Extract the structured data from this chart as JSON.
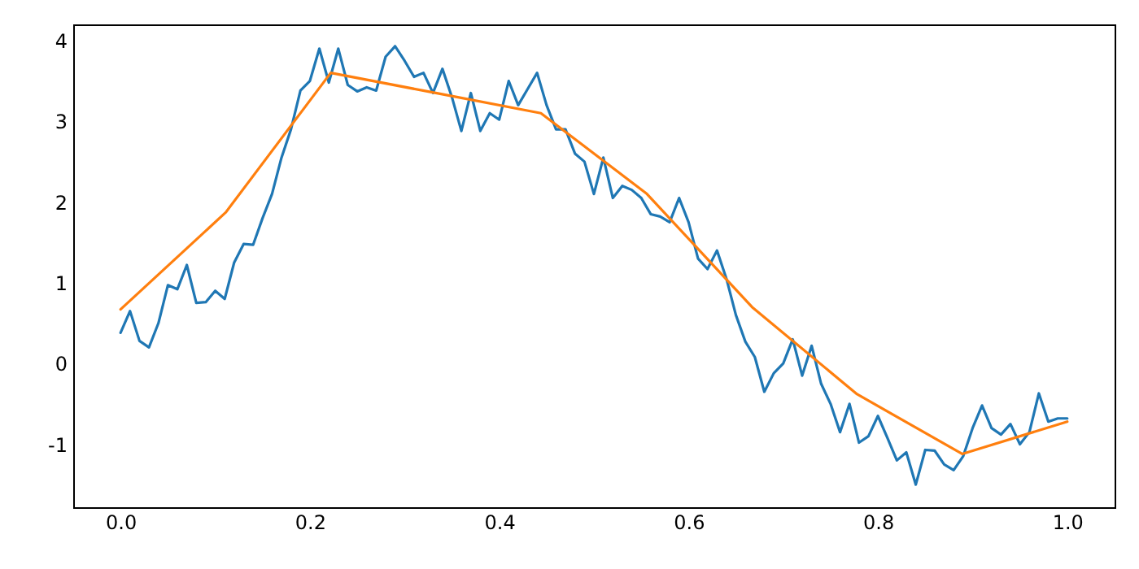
{
  "chart_data": {
    "type": "line",
    "xlim": [
      -0.05,
      1.05
    ],
    "xticks": [
      {
        "value": 0,
        "label": "0.0"
      },
      {
        "value": 0.2,
        "label": "0.2"
      },
      {
        "value": 0.4,
        "label": "0.4"
      },
      {
        "value": 0.6,
        "label": "0.6"
      },
      {
        "value": 0.8,
        "label": "0.8"
      },
      {
        "value": 1,
        "label": "1.0"
      }
    ],
    "ylim": [
      -1.78,
      4.2
    ],
    "yticks": [
      -1,
      0,
      1,
      2,
      3,
      4
    ],
    "grid": false,
    "series": [
      {
        "color": "#1f77b4",
        "x": [
          0,
          0.01,
          0.02,
          0.03,
          0.04,
          0.05,
          0.06,
          0.07,
          0.08,
          0.09,
          0.1,
          0.11,
          0.12,
          0.13,
          0.14,
          0.15,
          0.16,
          0.17,
          0.18,
          0.19,
          0.2,
          0.21,
          0.22,
          0.23,
          0.24,
          0.25,
          0.26,
          0.27,
          0.28,
          0.29,
          0.3,
          0.31,
          0.32,
          0.33,
          0.34,
          0.35,
          0.36,
          0.37,
          0.38,
          0.39,
          0.4,
          0.41,
          0.42,
          0.43,
          0.44,
          0.45,
          0.46,
          0.47,
          0.48,
          0.49,
          0.5,
          0.51,
          0.52,
          0.53,
          0.54,
          0.55,
          0.56,
          0.57,
          0.58,
          0.59,
          0.6,
          0.61,
          0.62,
          0.63,
          0.64,
          0.65,
          0.66,
          0.67,
          0.68,
          0.69,
          0.7,
          0.71,
          0.72,
          0.73,
          0.74,
          0.75,
          0.76,
          0.77,
          0.78,
          0.79,
          0.8,
          0.81,
          0.82,
          0.83,
          0.84,
          0.85,
          0.86,
          0.87,
          0.88,
          0.89,
          0.9,
          0.91,
          0.92,
          0.93,
          0.94,
          0.95,
          0.96,
          0.97,
          0.98,
          0.99,
          1
        ],
        "values": [
          0.38,
          0.65,
          0.28,
          0.2,
          0.5,
          0.97,
          0.92,
          1.22,
          0.75,
          0.76,
          0.9,
          0.8,
          1.25,
          1.48,
          1.47,
          1.8,
          2.1,
          2.55,
          2.9,
          3.38,
          3.5,
          3.9,
          3.48,
          3.9,
          3.45,
          3.37,
          3.42,
          3.38,
          3.8,
          3.93,
          3.75,
          3.55,
          3.6,
          3.35,
          3.65,
          3.3,
          2.88,
          3.35,
          2.88,
          3.1,
          3.02,
          3.5,
          3.2,
          3.4,
          3.6,
          3.2,
          2.9,
          2.9,
          2.6,
          2.5,
          2.1,
          2.55,
          2.05,
          2.2,
          2.15,
          2.05,
          1.85,
          1.82,
          1.75,
          2.05,
          1.75,
          1.3,
          1.17,
          1.4,
          1.05,
          0.6,
          0.27,
          0.08,
          -0.35,
          -0.12,
          0.0,
          0.3,
          -0.15,
          0.22,
          -0.25,
          -0.5,
          -0.85,
          -0.5,
          -0.98,
          -0.9,
          -0.65,
          -0.92,
          -1.2,
          -1.1,
          -1.5,
          -1.07,
          -1.08,
          -1.25,
          -1.32,
          -1.15,
          -0.8,
          -0.52,
          -0.8,
          -0.88,
          -0.75,
          -1.0,
          -0.85,
          -0.37,
          -0.72,
          -0.68,
          -0.68
        ]
      },
      {
        "color": "#ff7f0e",
        "x": [
          0,
          0.111,
          0.222,
          0.333,
          0.444,
          0.556,
          0.667,
          0.778,
          0.889,
          1
        ],
        "values": [
          0.67,
          1.87,
          3.6,
          3.35,
          3.1,
          2.1,
          0.7,
          -0.38,
          -1.12,
          -0.72
        ]
      }
    ]
  }
}
